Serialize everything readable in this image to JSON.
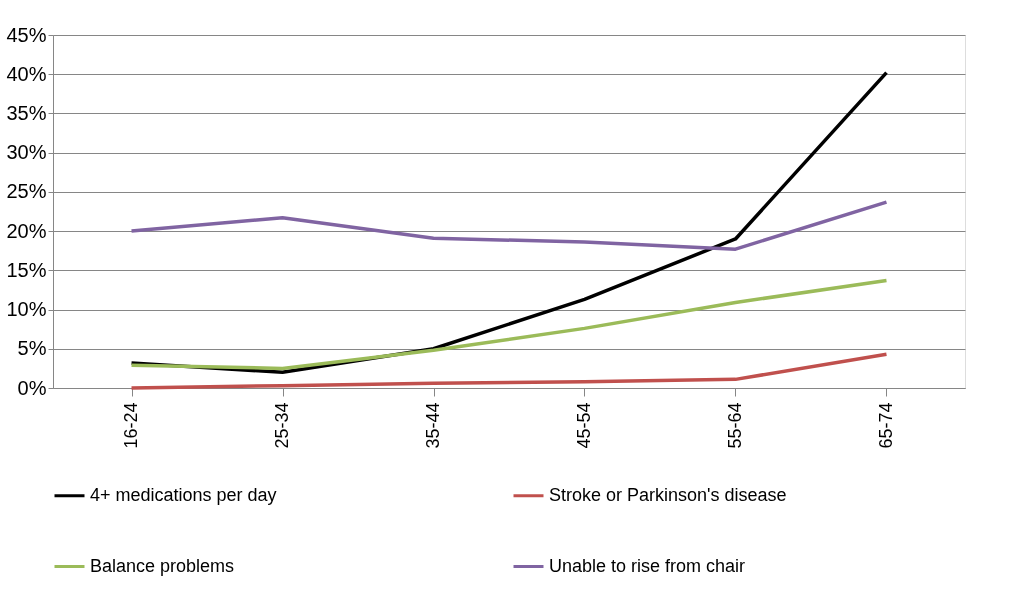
{
  "chart_data": {
    "type": "line",
    "categories": [
      "16-24",
      "25-34",
      "35-44",
      "45-54",
      "55-64",
      "65-74"
    ],
    "series": [
      {
        "name": "4+ medications per day",
        "color": "#000000",
        "values": [
          3.2,
          2.0,
          5.0,
          11.3,
          19.0,
          40.2
        ]
      },
      {
        "name": "Stroke or Parkinson's disease",
        "color": "#c0504d",
        "values": [
          0.0,
          0.3,
          0.6,
          0.8,
          1.1,
          4.3
        ]
      },
      {
        "name": "Balance problems",
        "color": "#9bbb59",
        "values": [
          2.9,
          2.5,
          4.8,
          7.6,
          10.9,
          13.7
        ]
      },
      {
        "name": "Unable to rise from chair",
        "color": "#8064a2",
        "values": [
          20.0,
          21.7,
          19.1,
          18.6,
          17.7,
          23.7
        ]
      }
    ],
    "ylim": [
      0,
      45
    ],
    "yticks": [
      {
        "value": 0,
        "label": "0%"
      },
      {
        "value": 5,
        "label": "5%"
      },
      {
        "value": 10,
        "label": "10%"
      },
      {
        "value": 15,
        "label": "15%"
      },
      {
        "value": 20,
        "label": "20%"
      },
      {
        "value": 25,
        "label": "25%"
      },
      {
        "value": 30,
        "label": "30%"
      },
      {
        "value": 35,
        "label": "35%"
      },
      {
        "value": 40,
        "label": "40%"
      },
      {
        "value": 45,
        "label": "45%"
      }
    ],
    "grid": "y",
    "legend": "bottom",
    "marker": "none",
    "line_style": "solid"
  }
}
